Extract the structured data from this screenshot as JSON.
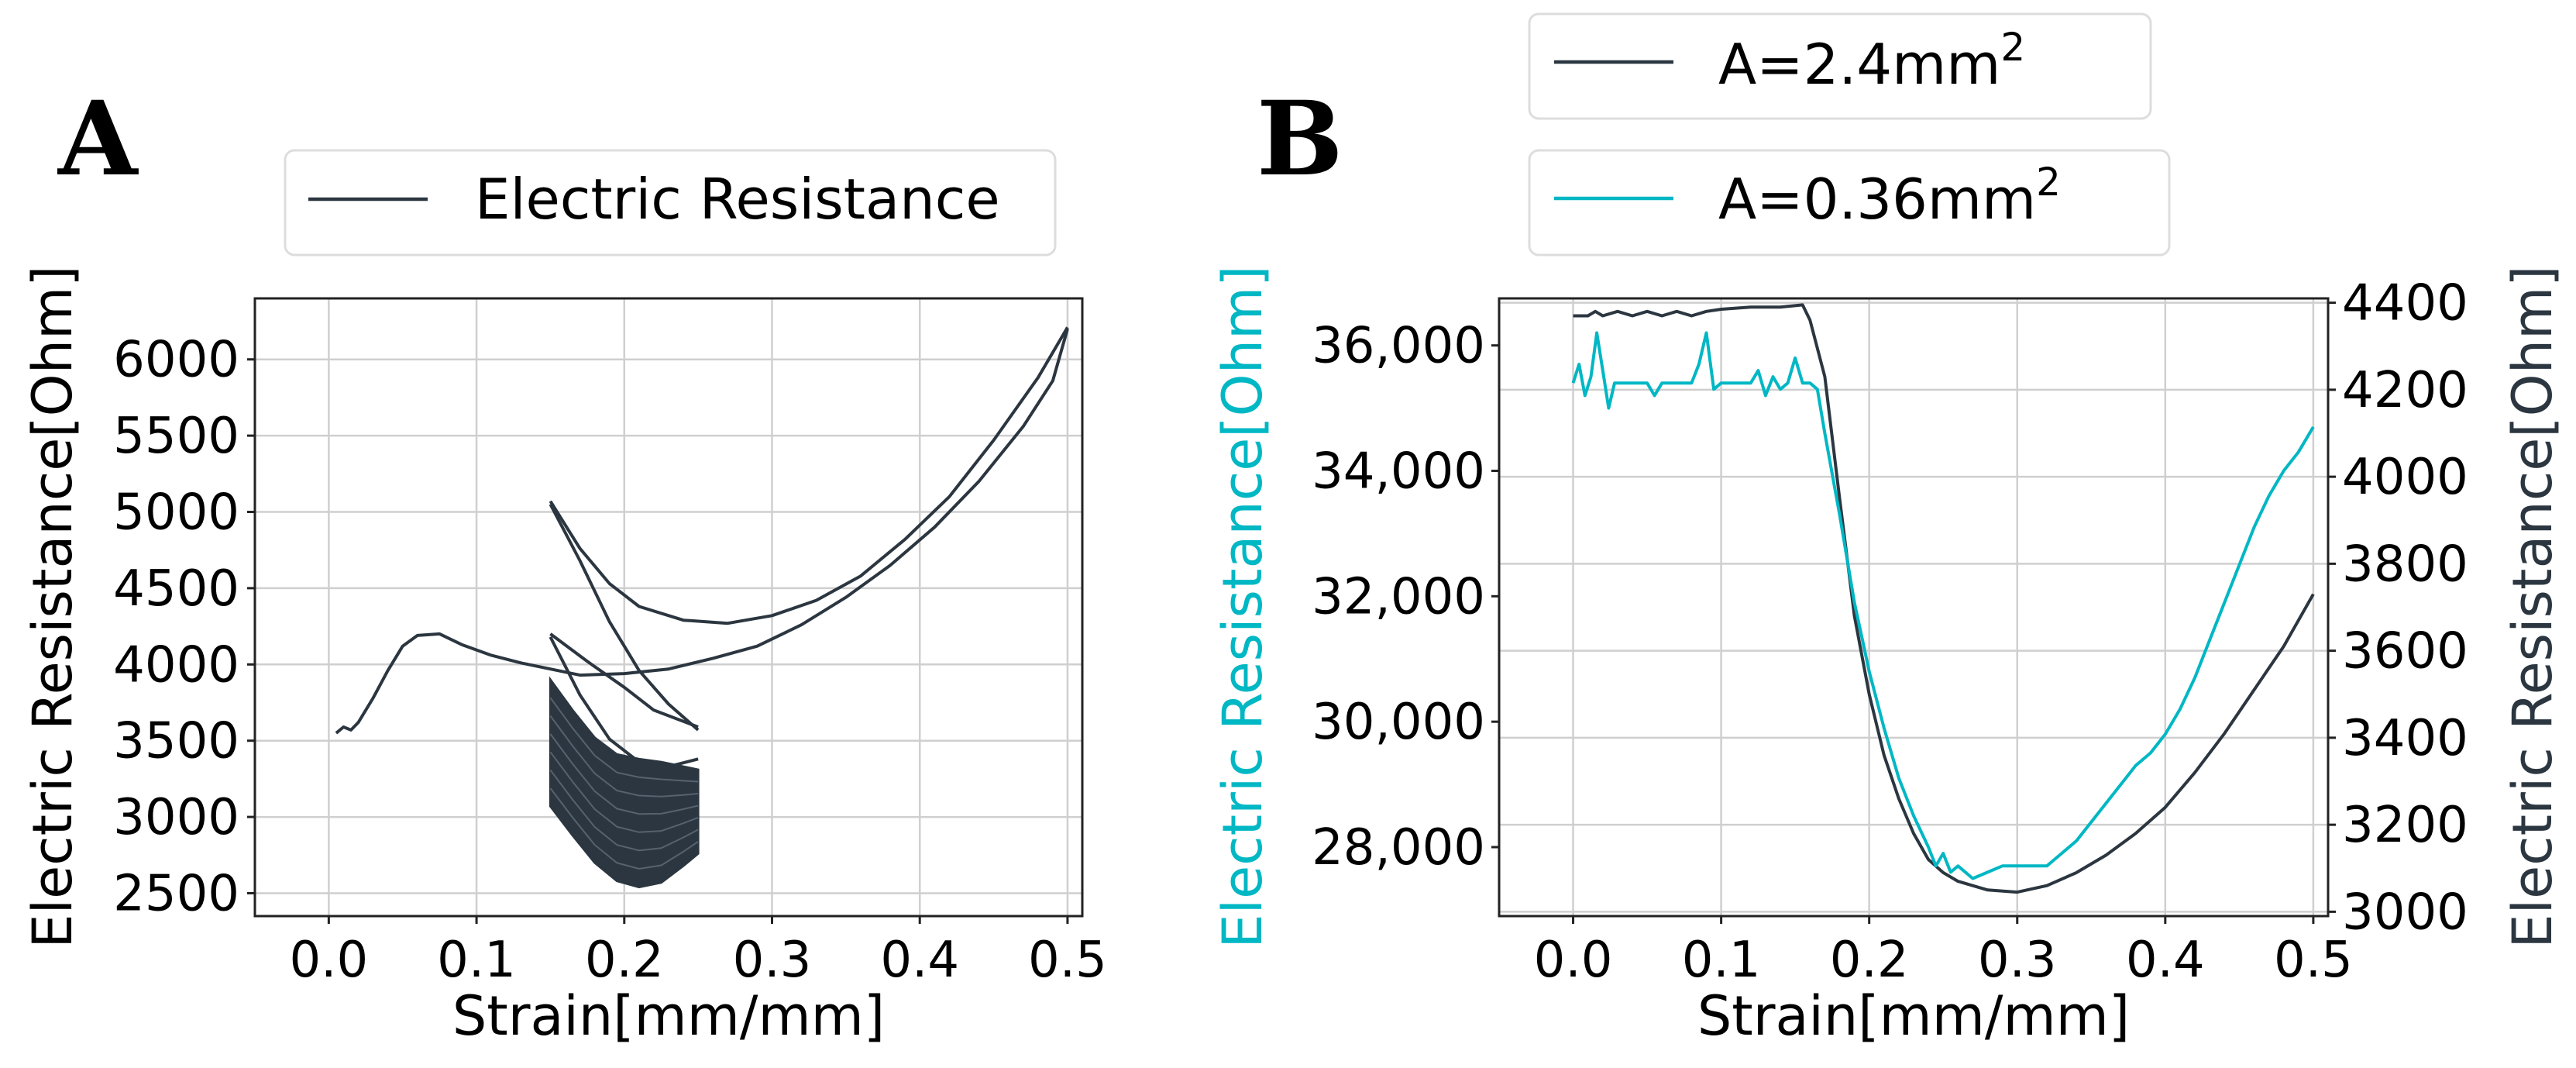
{
  "colors": {
    "dark": "#2b3640",
    "cyan": "#00b7c4"
  },
  "chart_data": [
    {
      "panel": "A",
      "type": "line",
      "xlabel": "Strain[mm/mm]",
      "ylabel": "Electric Resistance[Ohm]",
      "xlim": [
        -0.05,
        0.51
      ],
      "ylim": [
        2350,
        6400
      ],
      "xticks": [
        0.0,
        0.1,
        0.2,
        0.3,
        0.4,
        0.5
      ],
      "xtick_labels": [
        "0.0",
        "0.1",
        "0.2",
        "0.3",
        "0.4",
        "0.5"
      ],
      "yticks": [
        2500,
        3000,
        3500,
        4000,
        4500,
        5000,
        5500,
        6000
      ],
      "ytick_labels": [
        "2500",
        "3000",
        "3500",
        "4000",
        "4500",
        "5000",
        "5500",
        "6000"
      ],
      "legend": "top-center",
      "grid": true,
      "series": [
        {
          "name": "Electric Resistance",
          "color": "#2b3640",
          "segments": [
            [
              [
                0.005,
                3550
              ],
              [
                0.01,
                3590
              ],
              [
                0.015,
                3570
              ],
              [
                0.02,
                3620
              ],
              [
                0.03,
                3780
              ],
              [
                0.04,
                3960
              ],
              [
                0.05,
                4120
              ],
              [
                0.06,
                4190
              ],
              [
                0.075,
                4200
              ],
              [
                0.09,
                4130
              ],
              [
                0.11,
                4060
              ],
              [
                0.13,
                4010
              ],
              [
                0.15,
                3970
              ],
              [
                0.17,
                3930
              ],
              [
                0.2,
                3940
              ],
              [
                0.23,
                3970
              ],
              [
                0.26,
                4040
              ],
              [
                0.29,
                4120
              ],
              [
                0.32,
                4260
              ],
              [
                0.35,
                4440
              ],
              [
                0.38,
                4650
              ],
              [
                0.41,
                4900
              ],
              [
                0.44,
                5200
              ],
              [
                0.47,
                5560
              ],
              [
                0.49,
                5860
              ],
              [
                0.5,
                6200
              ]
            ],
            [
              [
                0.5,
                6210
              ],
              [
                0.48,
                5880
              ],
              [
                0.45,
                5470
              ],
              [
                0.42,
                5100
              ],
              [
                0.39,
                4820
              ],
              [
                0.36,
                4580
              ],
              [
                0.33,
                4420
              ],
              [
                0.3,
                4320
              ],
              [
                0.27,
                4270
              ],
              [
                0.24,
                4290
              ],
              [
                0.21,
                4380
              ],
              [
                0.19,
                4530
              ],
              [
                0.17,
                4760
              ],
              [
                0.15,
                5070
              ]
            ],
            [
              [
                0.15,
                5050
              ],
              [
                0.17,
                4680
              ],
              [
                0.19,
                4280
              ],
              [
                0.21,
                3960
              ],
              [
                0.23,
                3740
              ],
              [
                0.25,
                3570
              ]
            ],
            [
              [
                0.25,
                3590
              ],
              [
                0.22,
                3700
              ],
              [
                0.2,
                3850
              ],
              [
                0.175,
                4020
              ],
              [
                0.15,
                4200
              ]
            ],
            [
              [
                0.15,
                4180
              ],
              [
                0.17,
                3800
              ],
              [
                0.19,
                3510
              ],
              [
                0.21,
                3360
              ],
              [
                0.23,
                3330
              ],
              [
                0.25,
                3380
              ]
            ]
          ],
          "band": {
            "x": [
              0.15,
              0.165,
              0.18,
              0.195,
              0.21,
              0.225,
              0.24,
              0.25
            ],
            "upper": [
              3900,
              3700,
              3520,
              3410,
              3380,
              3360,
              3330,
              3310
            ],
            "lower": [
              3070,
              2880,
              2700,
              2580,
              2540,
              2570,
              2680,
              2760
            ]
          }
        }
      ]
    },
    {
      "panel": "B",
      "type": "line",
      "xlabel": "Strain[mm/mm]",
      "ylabel": "Electric Resistance[Ohm]",
      "ylabel_right": "Electric Resistance[Ohm]",
      "xlim": [
        -0.05,
        0.51
      ],
      "ylim": [
        26900,
        36750
      ],
      "ylim_right": [
        2990,
        4410
      ],
      "xticks": [
        0.0,
        0.1,
        0.2,
        0.3,
        0.4,
        0.5
      ],
      "xtick_labels": [
        "0.0",
        "0.1",
        "0.2",
        "0.3",
        "0.4",
        "0.5"
      ],
      "yticks": [
        28000,
        30000,
        32000,
        34000,
        36000
      ],
      "ytick_labels": [
        "28,000",
        "30,000",
        "32,000",
        "34,000",
        "36,000"
      ],
      "yticks_right": [
        3000,
        3200,
        3400,
        3600,
        3800,
        4000,
        4200,
        4400
      ],
      "ytick_labels_right": [
        "3000",
        "3200",
        "3400",
        "3600",
        "3800",
        "4000",
        "4200",
        "4400"
      ],
      "legend": "top-center",
      "grid": true,
      "series": [
        {
          "name": "A=2.4mm",
          "name_sup": "2",
          "axis": "right",
          "color": "#2b3640",
          "points": [
            [
              0.0,
              4370
            ],
            [
              0.01,
              4370
            ],
            [
              0.015,
              4380
            ],
            [
              0.02,
              4370
            ],
            [
              0.03,
              4380
            ],
            [
              0.04,
              4370
            ],
            [
              0.05,
              4380
            ],
            [
              0.06,
              4370
            ],
            [
              0.07,
              4380
            ],
            [
              0.08,
              4370
            ],
            [
              0.09,
              4380
            ],
            [
              0.1,
              4385
            ],
            [
              0.12,
              4390
            ],
            [
              0.14,
              4390
            ],
            [
              0.155,
              4395
            ],
            [
              0.16,
              4360
            ],
            [
              0.17,
              4230
            ],
            [
              0.18,
              3950
            ],
            [
              0.19,
              3680
            ],
            [
              0.2,
              3500
            ],
            [
              0.21,
              3360
            ],
            [
              0.22,
              3260
            ],
            [
              0.23,
              3180
            ],
            [
              0.24,
              3120
            ],
            [
              0.25,
              3090
            ],
            [
              0.26,
              3070
            ],
            [
              0.28,
              3050
            ],
            [
              0.3,
              3045
            ],
            [
              0.32,
              3060
            ],
            [
              0.34,
              3090
            ],
            [
              0.36,
              3130
            ],
            [
              0.38,
              3180
            ],
            [
              0.4,
              3240
            ],
            [
              0.42,
              3320
            ],
            [
              0.44,
              3410
            ],
            [
              0.46,
              3510
            ],
            [
              0.48,
              3610
            ],
            [
              0.5,
              3730
            ]
          ]
        },
        {
          "name": "A=0.36mm",
          "name_sup": "2",
          "axis": "left",
          "color": "#00b7c4",
          "points": [
            [
              0.0,
              35400
            ],
            [
              0.004,
              35700
            ],
            [
              0.008,
              35200
            ],
            [
              0.012,
              35500
            ],
            [
              0.016,
              36200
            ],
            [
              0.02,
              35600
            ],
            [
              0.024,
              35000
            ],
            [
              0.028,
              35400
            ],
            [
              0.04,
              35400
            ],
            [
              0.05,
              35400
            ],
            [
              0.055,
              35200
            ],
            [
              0.06,
              35400
            ],
            [
              0.08,
              35400
            ],
            [
              0.085,
              35700
            ],
            [
              0.09,
              36200
            ],
            [
              0.095,
              35300
            ],
            [
              0.1,
              35400
            ],
            [
              0.12,
              35400
            ],
            [
              0.125,
              35600
            ],
            [
              0.13,
              35200
            ],
            [
              0.135,
              35500
            ],
            [
              0.14,
              35300
            ],
            [
              0.145,
              35400
            ],
            [
              0.15,
              35800
            ],
            [
              0.155,
              35400
            ],
            [
              0.16,
              35400
            ],
            [
              0.165,
              35300
            ],
            [
              0.17,
              34600
            ],
            [
              0.18,
              33300
            ],
            [
              0.19,
              31900
            ],
            [
              0.2,
              30800
            ],
            [
              0.21,
              29900
            ],
            [
              0.22,
              29100
            ],
            [
              0.23,
              28500
            ],
            [
              0.24,
              28000
            ],
            [
              0.245,
              27700
            ],
            [
              0.25,
              27900
            ],
            [
              0.255,
              27600
            ],
            [
              0.26,
              27700
            ],
            [
              0.27,
              27500
            ],
            [
              0.28,
              27600
            ],
            [
              0.29,
              27700
            ],
            [
              0.3,
              27700
            ],
            [
              0.31,
              27700
            ],
            [
              0.32,
              27700
            ],
            [
              0.33,
              27900
            ],
            [
              0.34,
              28100
            ],
            [
              0.35,
              28400
            ],
            [
              0.36,
              28700
            ],
            [
              0.37,
              29000
            ],
            [
              0.38,
              29300
            ],
            [
              0.39,
              29500
            ],
            [
              0.4,
              29800
            ],
            [
              0.41,
              30200
            ],
            [
              0.42,
              30700
            ],
            [
              0.43,
              31300
            ],
            [
              0.44,
              31900
            ],
            [
              0.45,
              32500
            ],
            [
              0.46,
              33100
            ],
            [
              0.47,
              33600
            ],
            [
              0.48,
              34000
            ],
            [
              0.49,
              34300
            ],
            [
              0.5,
              34700
            ]
          ]
        }
      ]
    }
  ],
  "panelA": {
    "letter": "A",
    "legend_label": "Electric Resistance",
    "xlabel": "Strain[mm/mm]",
    "ylabel": "Electric Resistance[Ohm]"
  },
  "panelB": {
    "letter": "B",
    "legend_label_1": "A=2.4mm",
    "legend_sup_1": "2",
    "legend_label_2": "A=0.36mm",
    "legend_sup_2": "2",
    "xlabel": "Strain[mm/mm]",
    "ylabel_left": "Electric Resistance[Ohm]",
    "ylabel_right": "Electric Resistance[Ohm]"
  }
}
